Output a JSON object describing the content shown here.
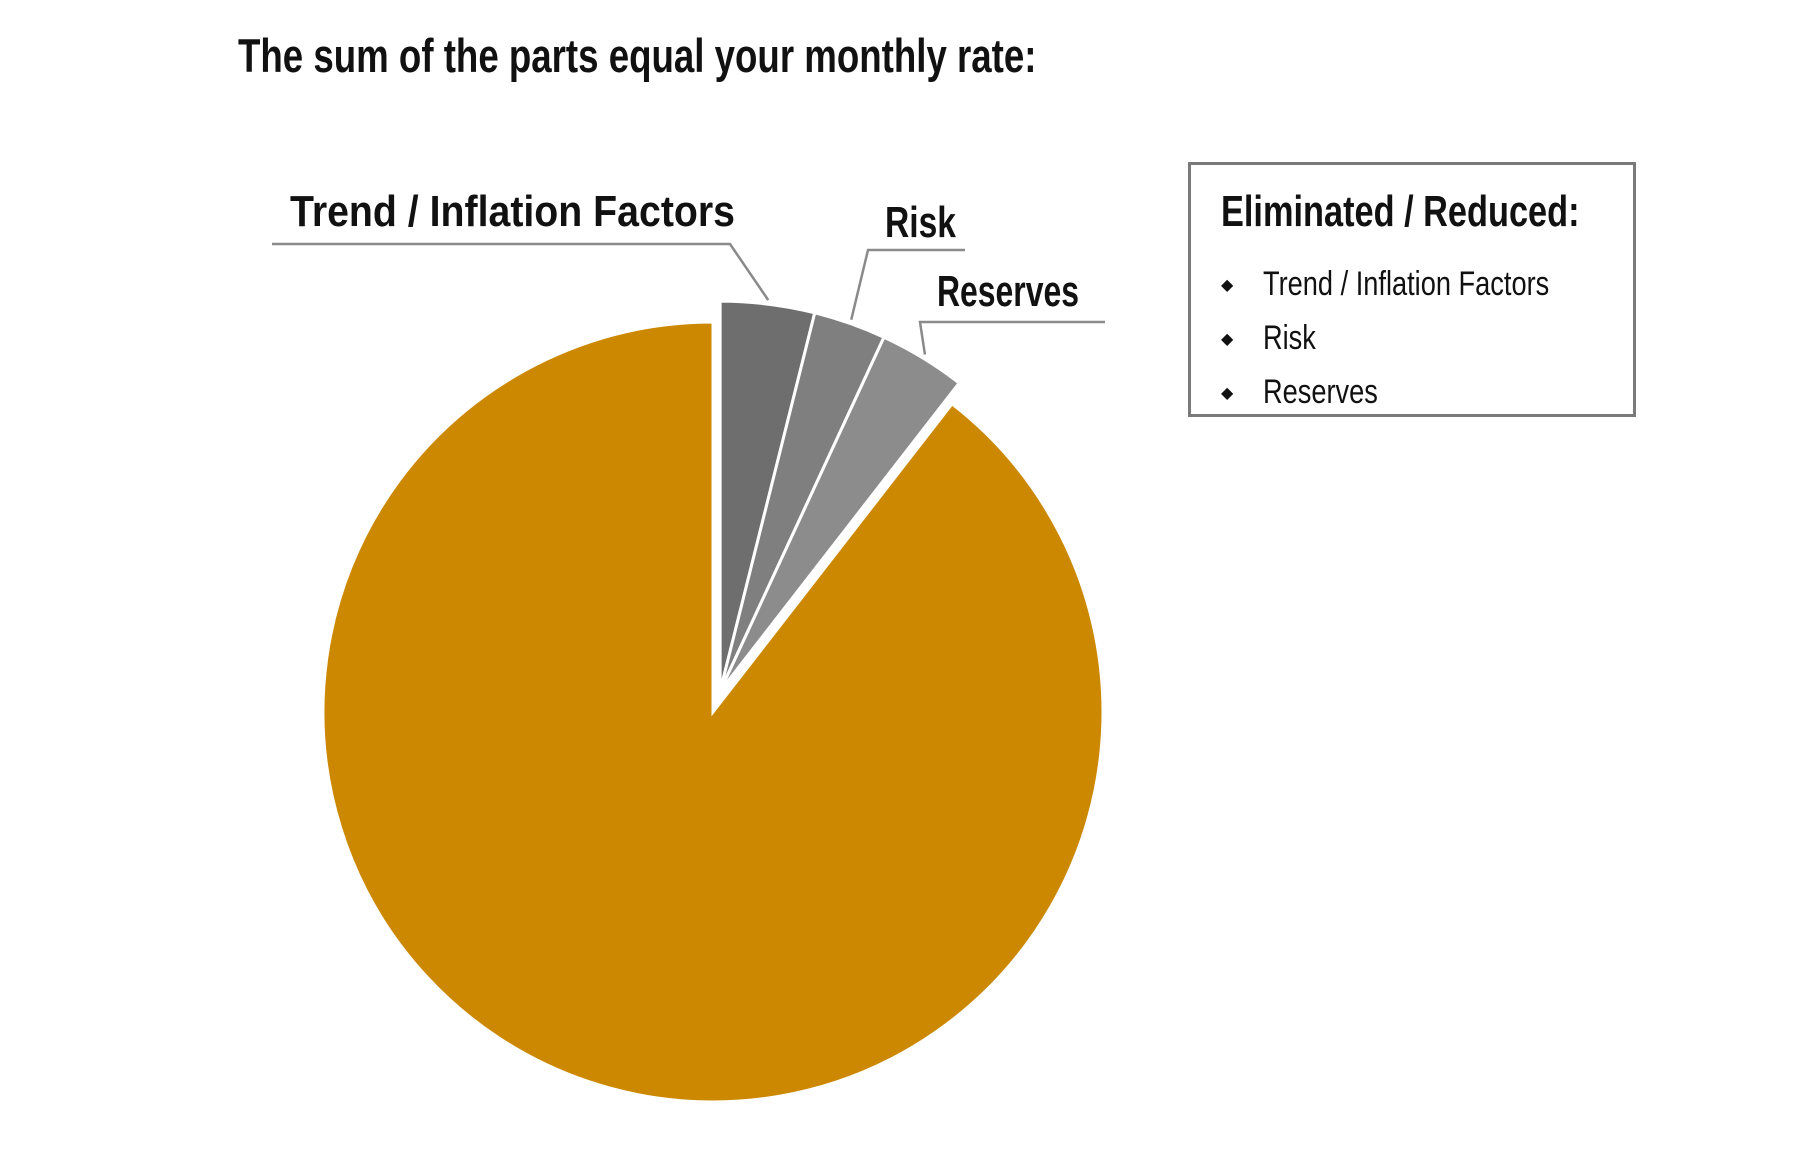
{
  "title": "The sum of the parts equal your monthly rate:",
  "legend": {
    "heading": "Eliminated / Reduced:",
    "bullet_icon": "diamond-bullet-icon",
    "items": [
      "Trend / Inflation Factors",
      "Risk",
      "Reserves"
    ]
  },
  "chart_data": {
    "type": "pie",
    "title": "The sum of the parts equal your monthly rate:",
    "slices": [
      {
        "label": "",
        "value": 89.5,
        "color": "#CC8800"
      },
      {
        "label": "Trend / Inflation Factors",
        "value": 3.9,
        "color": "#6E6E6E"
      },
      {
        "label": "Risk",
        "value": 3.0,
        "color": "#7F7F7F"
      },
      {
        "label": "Reserves",
        "value": 3.6,
        "color": "#8C8C8C"
      }
    ],
    "exploded": [
      "Trend / Inflation Factors",
      "Risk",
      "Reserves"
    ],
    "data_labels": [
      "Trend / Inflation Factors",
      "Risk",
      "Reserves"
    ]
  }
}
